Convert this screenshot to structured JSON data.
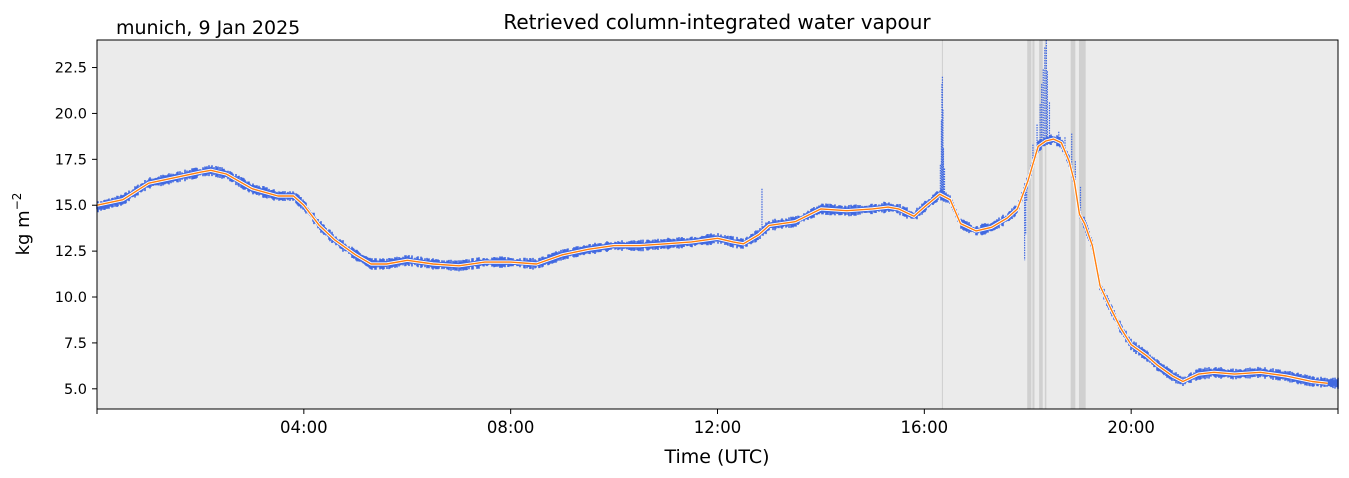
{
  "chart_data": {
    "type": "line",
    "title": "Retrieved column-integrated water vapour",
    "subtitle": "munich, 9 Jan 2025",
    "xlabel": "Time (UTC)",
    "ylabel": "kg m",
    "ylabel_superscript": "−2",
    "xlim_hours": [
      0,
      24
    ],
    "ylim": [
      3.9,
      24.0
    ],
    "x_ticks": [
      {
        "hour": 4,
        "label": "04:00"
      },
      {
        "hour": 8,
        "label": "08:00"
      },
      {
        "hour": 12,
        "label": "12:00"
      },
      {
        "hour": 16,
        "label": "16:00"
      },
      {
        "hour": 20,
        "label": "20:00"
      }
    ],
    "y_ticks": [
      {
        "value": 5.0,
        "label": "5.0"
      },
      {
        "value": 7.5,
        "label": "7.5"
      },
      {
        "value": 10.0,
        "label": "10.0"
      },
      {
        "value": 12.5,
        "label": "12.5"
      },
      {
        "value": 15.0,
        "label": "15.0"
      },
      {
        "value": 17.5,
        "label": "17.5"
      },
      {
        "value": 20.0,
        "label": "20.0"
      },
      {
        "value": 22.5,
        "label": "22.5"
      }
    ],
    "grid": false,
    "background_color": "#ebebeb",
    "raw_color": "#4169e1",
    "smooth_color": "#ff7f0e",
    "flag_color": "#d0d0d0",
    "flagged_intervals_hours": [
      [
        16.34,
        16.36
      ],
      [
        17.99,
        18.07
      ],
      [
        18.09,
        18.13
      ],
      [
        18.22,
        18.29
      ],
      [
        18.33,
        18.36
      ],
      [
        18.83,
        18.92
      ],
      [
        18.99,
        19.12
      ]
    ],
    "series": [
      {
        "kind": "raw",
        "spread": 0.22,
        "points": [
          [
            0.0,
            14.9
          ],
          [
            0.5,
            15.3
          ],
          [
            1.0,
            16.2
          ],
          [
            1.5,
            16.5
          ],
          [
            2.0,
            16.8
          ],
          [
            2.2,
            16.9
          ],
          [
            2.5,
            16.7
          ],
          [
            3.0,
            15.9
          ],
          [
            3.5,
            15.5
          ],
          [
            3.8,
            15.5
          ],
          [
            4.0,
            15.0
          ],
          [
            4.3,
            13.9
          ],
          [
            4.6,
            13.1
          ],
          [
            5.0,
            12.3
          ],
          [
            5.3,
            11.8
          ],
          [
            5.6,
            11.8
          ],
          [
            6.0,
            12.0
          ],
          [
            6.5,
            11.8
          ],
          [
            7.0,
            11.7
          ],
          [
            7.5,
            11.9
          ],
          [
            8.0,
            11.9
          ],
          [
            8.5,
            11.8
          ],
          [
            9.0,
            12.3
          ],
          [
            9.5,
            12.6
          ],
          [
            10.0,
            12.8
          ],
          [
            10.5,
            12.8
          ],
          [
            11.0,
            12.9
          ],
          [
            11.5,
            13.0
          ],
          [
            12.0,
            13.2
          ],
          [
            12.3,
            13.0
          ],
          [
            12.5,
            12.9
          ],
          [
            12.8,
            13.4
          ],
          [
            13.0,
            13.9
          ],
          [
            13.5,
            14.1
          ],
          [
            14.0,
            14.8
          ],
          [
            14.5,
            14.7
          ],
          [
            15.0,
            14.8
          ],
          [
            15.3,
            14.9
          ],
          [
            15.5,
            14.8
          ],
          [
            15.8,
            14.4
          ],
          [
            16.0,
            14.9
          ],
          [
            16.3,
            15.6
          ],
          [
            16.5,
            15.3
          ],
          [
            16.7,
            14.0
          ],
          [
            17.0,
            13.6
          ],
          [
            17.3,
            13.8
          ],
          [
            17.6,
            14.3
          ],
          [
            17.8,
            14.8
          ],
          [
            18.0,
            16.3
          ],
          [
            18.2,
            18.2
          ],
          [
            18.35,
            18.5
          ],
          [
            18.5,
            18.6
          ],
          [
            18.65,
            18.4
          ],
          [
            18.8,
            17.4
          ],
          [
            18.9,
            16.3
          ],
          [
            19.0,
            14.5
          ],
          [
            19.1,
            14.0
          ],
          [
            19.25,
            12.8
          ],
          [
            19.4,
            10.6
          ],
          [
            19.6,
            9.4
          ],
          [
            19.8,
            8.3
          ],
          [
            20.0,
            7.4
          ],
          [
            20.3,
            6.8
          ],
          [
            20.5,
            6.3
          ],
          [
            20.8,
            5.7
          ],
          [
            21.0,
            5.4
          ],
          [
            21.3,
            5.8
          ],
          [
            21.6,
            5.9
          ],
          [
            22.0,
            5.8
          ],
          [
            22.5,
            5.9
          ],
          [
            23.0,
            5.7
          ],
          [
            23.5,
            5.4
          ],
          [
            24.0,
            5.3
          ]
        ],
        "spikes": [
          [
            12.86,
            15.9
          ],
          [
            16.31,
            17.2
          ],
          [
            16.33,
            19.6
          ],
          [
            16.34,
            21.6
          ],
          [
            16.35,
            22.0
          ],
          [
            16.36,
            20.2
          ],
          [
            16.37,
            18.1
          ],
          [
            16.39,
            17.0
          ],
          [
            17.94,
            12.0
          ],
          [
            17.96,
            13.4
          ],
          [
            17.98,
            15.2
          ],
          [
            18.05,
            17.0
          ],
          [
            18.1,
            18.3
          ],
          [
            18.18,
            19.4
          ],
          [
            18.24,
            20.5
          ],
          [
            18.27,
            21.6
          ],
          [
            18.3,
            22.4
          ],
          [
            18.33,
            23.6
          ],
          [
            18.36,
            24.0
          ],
          [
            18.38,
            22.3
          ],
          [
            18.42,
            20.6
          ],
          [
            18.6,
            19.0
          ],
          [
            18.72,
            18.7
          ],
          [
            18.85,
            18.9
          ],
          [
            18.92,
            17.4
          ],
          [
            19.02,
            16.0
          ]
        ]
      },
      {
        "kind": "smoothed",
        "points": [
          [
            0.0,
            15.0
          ],
          [
            0.5,
            15.3
          ],
          [
            1.0,
            16.2
          ],
          [
            1.5,
            16.5
          ],
          [
            2.0,
            16.8
          ],
          [
            2.2,
            16.9
          ],
          [
            2.5,
            16.7
          ],
          [
            3.0,
            15.9
          ],
          [
            3.5,
            15.5
          ],
          [
            3.8,
            15.5
          ],
          [
            4.0,
            15.0
          ],
          [
            4.3,
            13.9
          ],
          [
            4.6,
            13.1
          ],
          [
            5.0,
            12.3
          ],
          [
            5.3,
            11.8
          ],
          [
            5.6,
            11.8
          ],
          [
            6.0,
            12.0
          ],
          [
            6.5,
            11.8
          ],
          [
            7.0,
            11.7
          ],
          [
            7.5,
            11.9
          ],
          [
            8.0,
            11.9
          ],
          [
            8.5,
            11.8
          ],
          [
            9.0,
            12.3
          ],
          [
            9.5,
            12.6
          ],
          [
            10.0,
            12.8
          ],
          [
            10.5,
            12.8
          ],
          [
            11.0,
            12.9
          ],
          [
            11.5,
            13.0
          ],
          [
            12.0,
            13.2
          ],
          [
            12.3,
            13.0
          ],
          [
            12.5,
            12.9
          ],
          [
            12.8,
            13.4
          ],
          [
            13.0,
            13.9
          ],
          [
            13.5,
            14.1
          ],
          [
            14.0,
            14.8
          ],
          [
            14.5,
            14.7
          ],
          [
            15.0,
            14.8
          ],
          [
            15.3,
            14.9
          ],
          [
            15.5,
            14.8
          ],
          [
            15.8,
            14.4
          ],
          [
            16.0,
            14.9
          ],
          [
            16.3,
            15.6
          ],
          [
            16.5,
            15.3
          ],
          [
            16.7,
            14.0
          ],
          [
            17.0,
            13.6
          ],
          [
            17.3,
            13.8
          ],
          [
            17.6,
            14.3
          ],
          [
            17.8,
            14.8
          ],
          [
            18.0,
            16.3
          ],
          [
            18.2,
            18.2
          ],
          [
            18.35,
            18.5
          ],
          [
            18.5,
            18.6
          ],
          [
            18.65,
            18.4
          ],
          [
            18.8,
            17.4
          ],
          [
            18.9,
            16.3
          ],
          [
            19.0,
            14.5
          ],
          [
            19.1,
            14.0
          ],
          [
            19.25,
            12.8
          ],
          [
            19.4,
            10.6
          ],
          [
            19.6,
            9.4
          ],
          [
            19.8,
            8.3
          ],
          [
            20.0,
            7.4
          ],
          [
            20.3,
            6.8
          ],
          [
            20.5,
            6.3
          ],
          [
            20.8,
            5.7
          ],
          [
            21.0,
            5.4
          ],
          [
            21.3,
            5.8
          ],
          [
            21.6,
            5.9
          ],
          [
            22.0,
            5.8
          ],
          [
            22.5,
            5.9
          ],
          [
            23.0,
            5.7
          ],
          [
            23.5,
            5.4
          ],
          [
            23.8,
            5.3
          ]
        ]
      }
    ]
  }
}
